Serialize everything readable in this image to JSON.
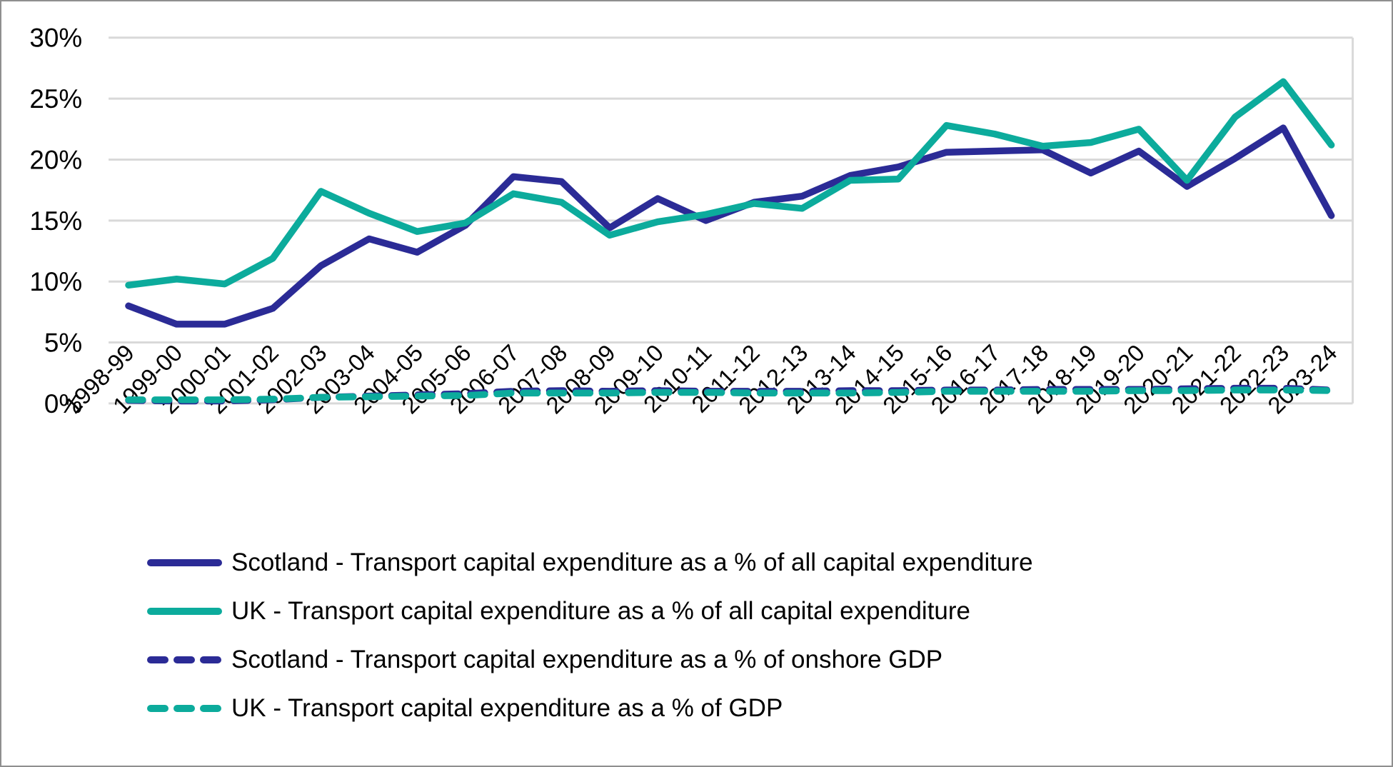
{
  "figure": {
    "background": "#ffffff",
    "border_color": "#8f8f8f",
    "gridline_color": "#d9d9d9",
    "text_color": "#000000"
  },
  "chart_data": {
    "type": "line",
    "title": "",
    "xlabel": "",
    "ylabel": "",
    "units": "%",
    "ylim": [
      0,
      30
    ],
    "y_tick_step": 5,
    "y_tick_labels": [
      "0%",
      "5%",
      "10%",
      "15%",
      "20%",
      "25%",
      "30%"
    ],
    "grid": "horizontal",
    "legend_position": "bottom-left",
    "categories": [
      "1998-99",
      "1999-00",
      "2000-01",
      "2001-02",
      "2002-03",
      "2003-04",
      "2004-05",
      "2005-06",
      "2006-07",
      "2007-08",
      "2008-09",
      "2009-10",
      "2010-11",
      "2011-12",
      "2012-13",
      "2013-14",
      "2014-15",
      "2015-16",
      "2016-17",
      "2017-18",
      "2018-19",
      "2019-20",
      "2020-21",
      "2021-22",
      "2022-23",
      "2023-24"
    ],
    "series": [
      {
        "name": "Scotland - Transport capital expenditure as a % of all capital expenditure",
        "color": "#2b2b96",
        "style": "solid",
        "values": [
          8.0,
          6.5,
          6.5,
          7.8,
          11.3,
          13.5,
          12.4,
          14.6,
          18.6,
          18.2,
          14.4,
          16.8,
          15.0,
          16.5,
          17.0,
          18.7,
          19.4,
          20.6,
          20.7,
          20.8,
          18.9,
          20.7,
          17.8,
          20.1,
          22.6,
          15.4
        ]
      },
      {
        "name": "UK - Transport capital expenditure as a % of all capital expenditure",
        "color": "#0cab9c",
        "style": "solid",
        "values": [
          9.7,
          10.2,
          9.8,
          11.9,
          17.4,
          15.6,
          14.1,
          14.8,
          17.2,
          16.5,
          13.8,
          14.9,
          15.5,
          16.4,
          16.0,
          18.3,
          18.4,
          22.8,
          22.1,
          21.1,
          21.4,
          22.5,
          18.3,
          23.5,
          26.4,
          21.2
        ]
      },
      {
        "name": "Scotland - Transport capital expenditure as a % of onshore GDP",
        "color": "#2b2b96",
        "style": "dashed",
        "values": [
          0.25,
          0.2,
          0.2,
          0.3,
          0.5,
          0.6,
          0.7,
          0.8,
          1.0,
          1.05,
          1.0,
          1.05,
          1.0,
          1.0,
          1.0,
          1.05,
          1.05,
          1.1,
          1.1,
          1.15,
          1.15,
          1.15,
          1.2,
          1.25,
          1.25,
          1.1
        ]
      },
      {
        "name": "UK - Transport capital expenditure as a % of GDP",
        "color": "#0cab9c",
        "style": "dashed",
        "values": [
          0.3,
          0.3,
          0.3,
          0.35,
          0.5,
          0.55,
          0.6,
          0.65,
          0.85,
          0.85,
          0.85,
          0.9,
          0.9,
          0.85,
          0.85,
          0.85,
          0.9,
          1.0,
          1.0,
          1.0,
          1.0,
          1.05,
          1.05,
          1.1,
          1.1,
          1.05
        ]
      }
    ]
  }
}
